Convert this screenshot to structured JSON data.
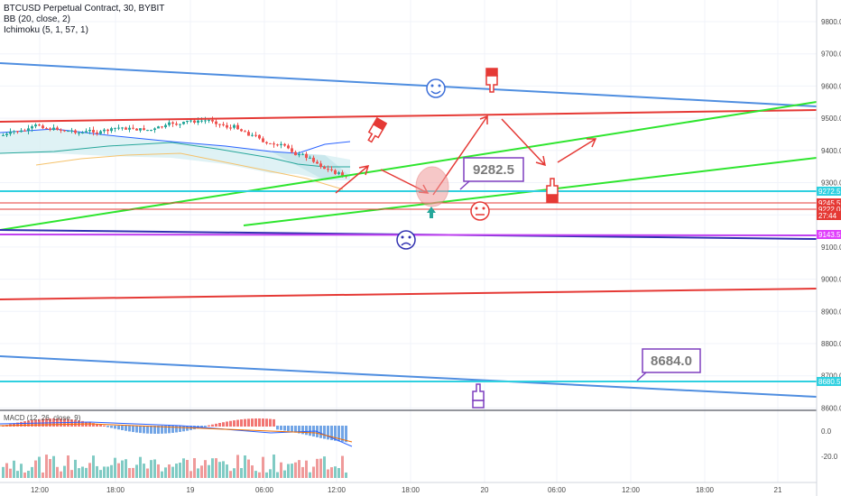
{
  "legend": {
    "line1": "BTCUSD Perpetual Contract, 30, BYBIT",
    "line2": "BB (20, close, 2)",
    "line3": "Ichimoku (5, 1, 57, 1)"
  },
  "chart_data": {
    "type": "line",
    "symbol": "BTCUSD Perpetual Contract",
    "timeframe": "30",
    "exchange": "BYBIT",
    "y_ticks": [
      9800.0,
      9700.0,
      9600.0,
      9500.0,
      9400.0,
      9300.0,
      9200.0,
      9100.0,
      9000.0,
      8900.0,
      8800.0,
      8700.0,
      8600.0
    ],
    "x_ticks": [
      "12:00",
      "18:00",
      "19",
      "06:00",
      "12:00",
      "18:00",
      "20",
      "06:00",
      "12:00",
      "18:00",
      "21"
    ],
    "price_tags": [
      {
        "label": "9272.5",
        "value": 9272.5,
        "color": "#2fd0e0"
      },
      {
        "label": "9245.5",
        "value": 9245.5,
        "color": "#e53935"
      },
      {
        "label": "9222.0",
        "value": 9222.0,
        "color": "#e53935"
      },
      {
        "label": "27:44",
        "value": 9205.0,
        "color": "#e53935"
      },
      {
        "label": "9143.5",
        "value": 9143.5,
        "color": "#e040fb"
      },
      {
        "label": "8680.5",
        "value": 8680.5,
        "color": "#2fd0e0"
      }
    ],
    "annotations": [
      {
        "text": "9282.5",
        "x_time": "19 18:00",
        "y": 9282.5
      },
      {
        "text": "8684.0",
        "x_time": "21 06:00",
        "y": 8684.0
      }
    ],
    "sub_pane": {
      "y_ticks": [
        "0.0",
        "-20.0"
      ]
    },
    "colors": {
      "up": "#26a69a",
      "down": "#ef5350",
      "channel_red": "#e53935",
      "trend_green": "#2ee52e",
      "trend_blue": "#4f8ee0",
      "annotation": "#7e3fbf"
    }
  }
}
